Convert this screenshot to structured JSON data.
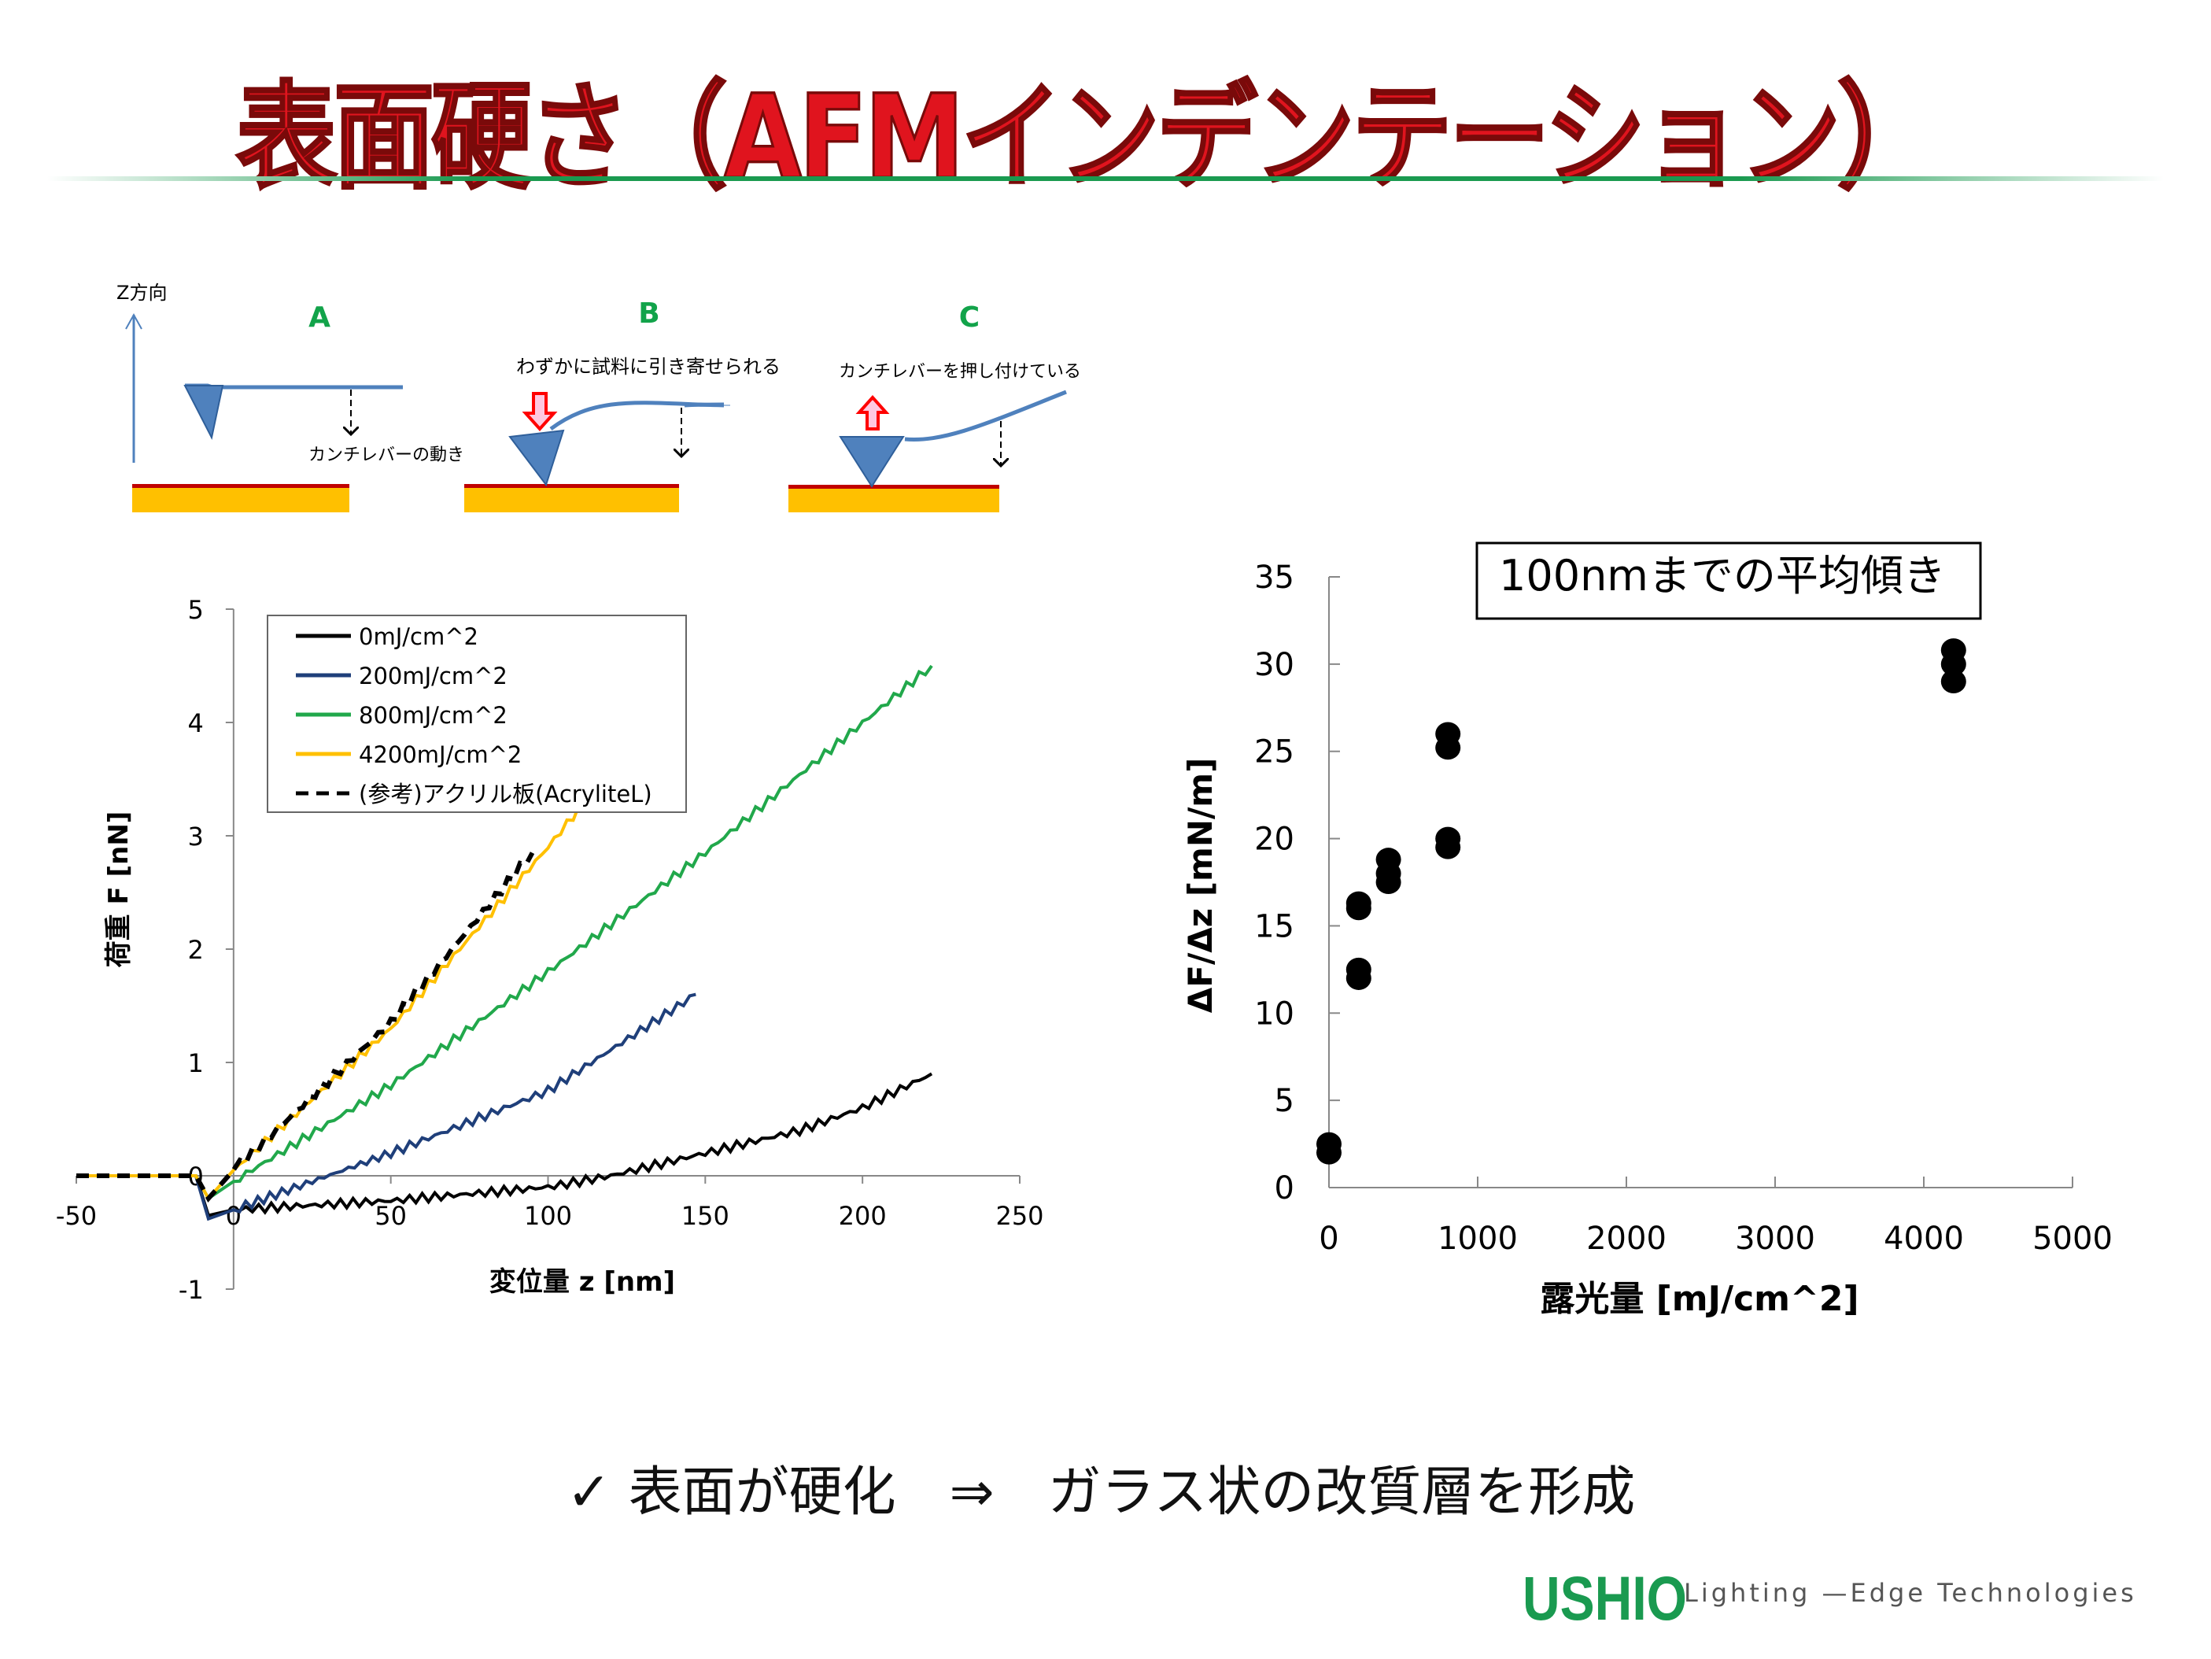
{
  "title": "表面硬さ（AFMインデンテーション）",
  "diagram": {
    "z_label": "Z方向",
    "panels": [
      {
        "label": "A",
        "note": "カンチレバーの動き"
      },
      {
        "label": "B",
        "note": "わずかに試料に引き寄せられる"
      },
      {
        "label": "C",
        "note": "カンチレバーを押し付けている"
      }
    ],
    "colors": {
      "label": "#12a34a",
      "tip": "#4f81bd",
      "substrate": "#ffc000",
      "surface": "#c00000",
      "arrow": "#ff0000"
    }
  },
  "chart_data": [
    {
      "type": "line",
      "title": "",
      "xlabel": "変位量 z [nm]",
      "ylabel": "荷重 F [nN]",
      "xlim": [
        -50,
        250
      ],
      "ylim": [
        -1,
        5
      ],
      "xticks": [
        "-50",
        "0",
        "50",
        "100",
        "150",
        "200",
        "250"
      ],
      "yticks": [
        "-1",
        "0",
        "1",
        "2",
        "3",
        "4",
        "5"
      ],
      "legend_position": "top-left",
      "series": [
        {
          "name": "0mJ/cm^2",
          "color": "#000000",
          "dash": false,
          "x": [
            -50,
            -12,
            -8,
            0,
            50,
            100,
            120,
            150,
            180,
            200,
            222
          ],
          "y": [
            0,
            0,
            -0.35,
            -0.3,
            -0.22,
            -0.1,
            0,
            0.2,
            0.4,
            0.6,
            0.9
          ]
        },
        {
          "name": "200mJ/cm^2",
          "color": "#1f3f7a",
          "dash": false,
          "x": [
            -50,
            -12,
            -8,
            0,
            25,
            50,
            100,
            147
          ],
          "y": [
            0,
            0,
            -0.38,
            -0.3,
            -0.05,
            0.2,
            0.75,
            1.6
          ]
        },
        {
          "name": "800mJ/cm^2",
          "color": "#21a84b",
          "dash": false,
          "x": [
            -50,
            -12,
            -8,
            0,
            50,
            100,
            150,
            222
          ],
          "y": [
            0,
            0,
            -0.2,
            -0.05,
            0.8,
            1.8,
            2.85,
            4.5
          ]
        },
        {
          "name": "4200mJ/cm^2",
          "color": "#ffc000",
          "dash": false,
          "x": [
            -50,
            -12,
            -8,
            0,
            50,
            100,
            132
          ],
          "y": [
            0,
            0,
            -0.2,
            0.05,
            1.3,
            2.9,
            4.0
          ]
        },
        {
          "name": "(参考)アクリル板(AcryliteL)",
          "color": "#000000",
          "dash": true,
          "x": [
            -50,
            -12,
            -8,
            0,
            50,
            95
          ],
          "y": [
            0,
            0,
            -0.2,
            0.05,
            1.35,
            2.85
          ]
        }
      ]
    },
    {
      "type": "scatter",
      "title": "100nmまでの平均傾き",
      "xlabel": "露光量 [mJ/cm^2]",
      "ylabel": "ΔF/Δz  [mN/m]",
      "xlim": [
        0,
        5000
      ],
      "ylim": [
        0,
        35
      ],
      "xticks": [
        "0",
        "1000",
        "2000",
        "3000",
        "4000",
        "5000"
      ],
      "yticks": [
        "0",
        "5",
        "10",
        "15",
        "20",
        "25",
        "30",
        "35"
      ],
      "x": [
        0,
        0,
        200,
        200,
        200,
        200,
        400,
        400,
        400,
        800,
        800,
        800,
        800,
        4200,
        4200,
        4200
      ],
      "y": [
        2.0,
        2.5,
        12.0,
        12.5,
        16.0,
        16.3,
        17.5,
        18.0,
        18.8,
        19.5,
        20.0,
        25.2,
        26.0,
        29.0,
        30.0,
        30.8
      ]
    }
  ],
  "bottom_text": "✓ 表面が硬化　⇒　ガラス状の改質層を形成",
  "logo": "USHIO",
  "tagline": "Lighting —Edge Technologies"
}
